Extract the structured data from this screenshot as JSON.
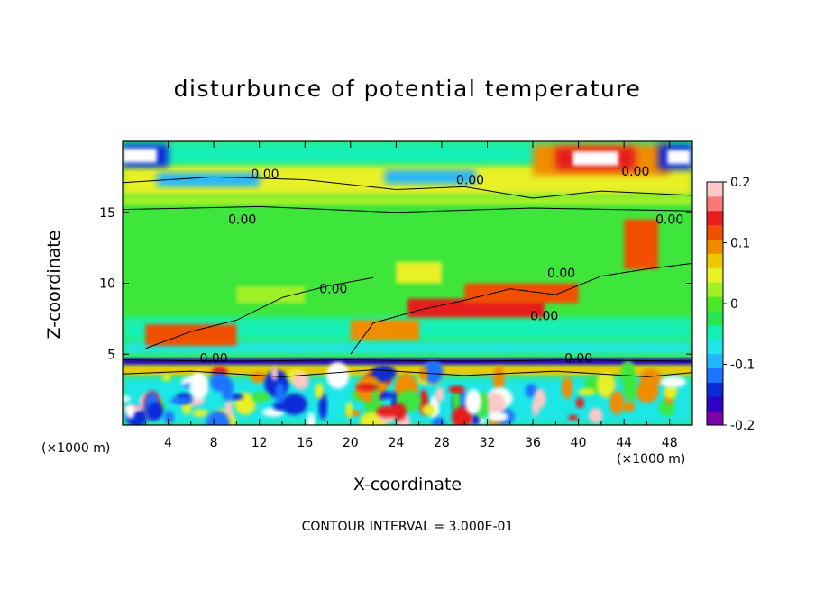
{
  "chart_data": {
    "type": "heatmap",
    "title": "disturbunce of potential temperature",
    "xlabel": "X-coordinate",
    "ylabel": "Z-coordinate",
    "x_unit": "(×1000 m)",
    "y_unit": "(×1000 m)",
    "xlim": [
      0,
      50
    ],
    "ylim": [
      0,
      20
    ],
    "x_ticks": [
      4,
      8,
      12,
      16,
      20,
      24,
      28,
      32,
      36,
      40,
      44,
      48
    ],
    "y_ticks": [
      5,
      10,
      15
    ],
    "colorbar": {
      "range": [
        -0.2,
        0.2
      ],
      "tick_values": [
        0.2,
        0.1,
        0,
        -0.1,
        -0.2
      ],
      "tick_labels": [
        "0.2",
        "0.1",
        "0",
        "-0.1",
        "-0.2"
      ],
      "colors": [
        "#7a00a8",
        "#2f00c8",
        "#0a2ad8",
        "#1c73ff",
        "#22b6ff",
        "#1fe6e6",
        "#14f0b4",
        "#28e650",
        "#4ee628",
        "#a0f028",
        "#e8f028",
        "#f0c800",
        "#f08c00",
        "#f05000",
        "#e61e1e",
        "#ff7878",
        "#ffc8c8"
      ]
    },
    "contour_labels": [
      "0.00",
      "0.00",
      "0.00",
      "0.00",
      "0.00",
      "0.00",
      "0.00",
      "0.00",
      "0.00",
      "0.00"
    ],
    "contour_interval_text": "CONTOUR INTERVAL = 3.000E-01"
  }
}
